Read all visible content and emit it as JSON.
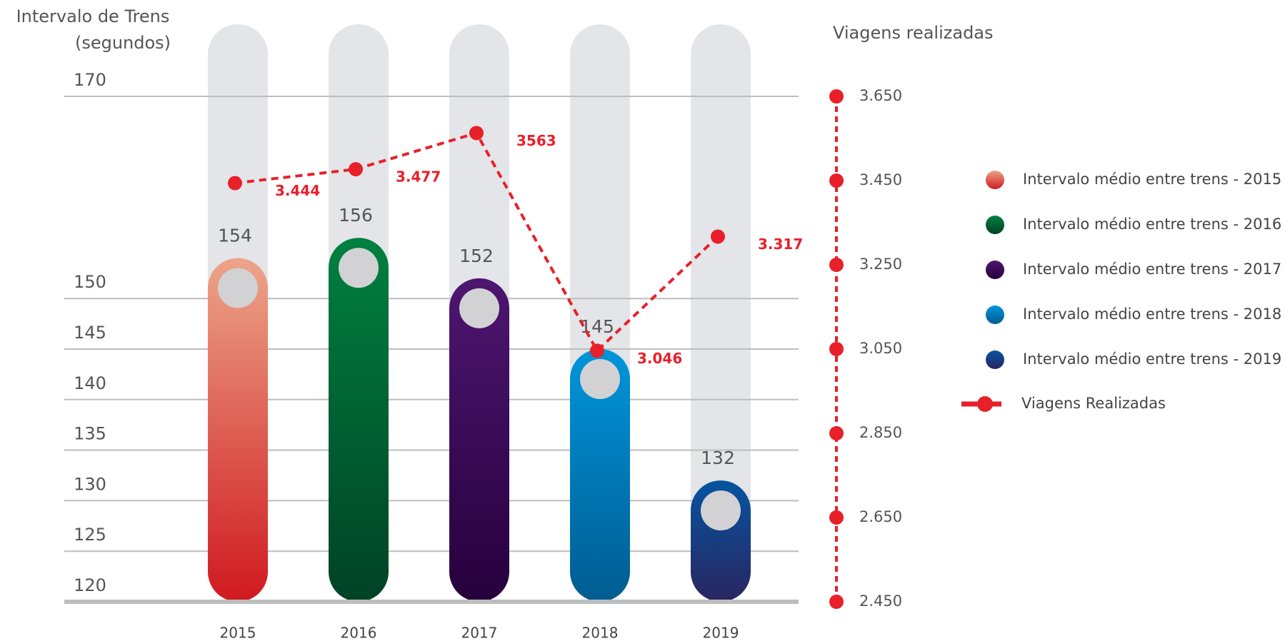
{
  "chart_data": {
    "type": "bar",
    "y_label": [
      "Intervalo de Trens",
      "(segundos)"
    ],
    "y2_label": "Viagens realizadas",
    "categories": [
      "2015",
      "2016",
      "2017",
      "2018",
      "2019"
    ],
    "ylim": [
      120,
      170
    ],
    "yticks": [
      120,
      125,
      130,
      135,
      140,
      145,
      150,
      170
    ],
    "y2lim": [
      2450,
      3650
    ],
    "y2ticks": [
      {
        "value": 2450,
        "label": "2.450"
      },
      {
        "value": 2650,
        "label": "2.650"
      },
      {
        "value": 2850,
        "label": "2.850"
      },
      {
        "value": 3050,
        "label": "3.050"
      },
      {
        "value": 3250,
        "label": "3.250"
      },
      {
        "value": 3450,
        "label": "3.450"
      },
      {
        "value": 3650,
        "label": "3.650"
      }
    ],
    "grid": true,
    "bars": {
      "values": [
        154,
        156,
        152,
        145,
        132
      ],
      "legend": [
        "Intervalo médio entre trens - 2015",
        "Intervalo médio entre trens - 2016",
        "Intervalo médio entre trens - 2017",
        "Intervalo médio entre trens - 2018",
        "Intervalo médio entre trens - 2019"
      ],
      "colors": [
        [
          "#eca58a",
          "#d0191f"
        ],
        [
          "#00803f",
          "#004226"
        ],
        [
          "#4e1670",
          "#26003c"
        ],
        [
          "#0095db",
          "#005c91"
        ],
        [
          "#0654a0",
          "#2a2560"
        ]
      ]
    },
    "series": [
      {
        "name": "Viagens Realizadas",
        "color": "#e8202a",
        "axis": "y2",
        "values": [
          3444,
          3477,
          3563,
          3046,
          3317
        ],
        "value_labels": [
          "3.444",
          "3.477",
          "3563",
          "3.046",
          "3.317"
        ]
      }
    ]
  }
}
